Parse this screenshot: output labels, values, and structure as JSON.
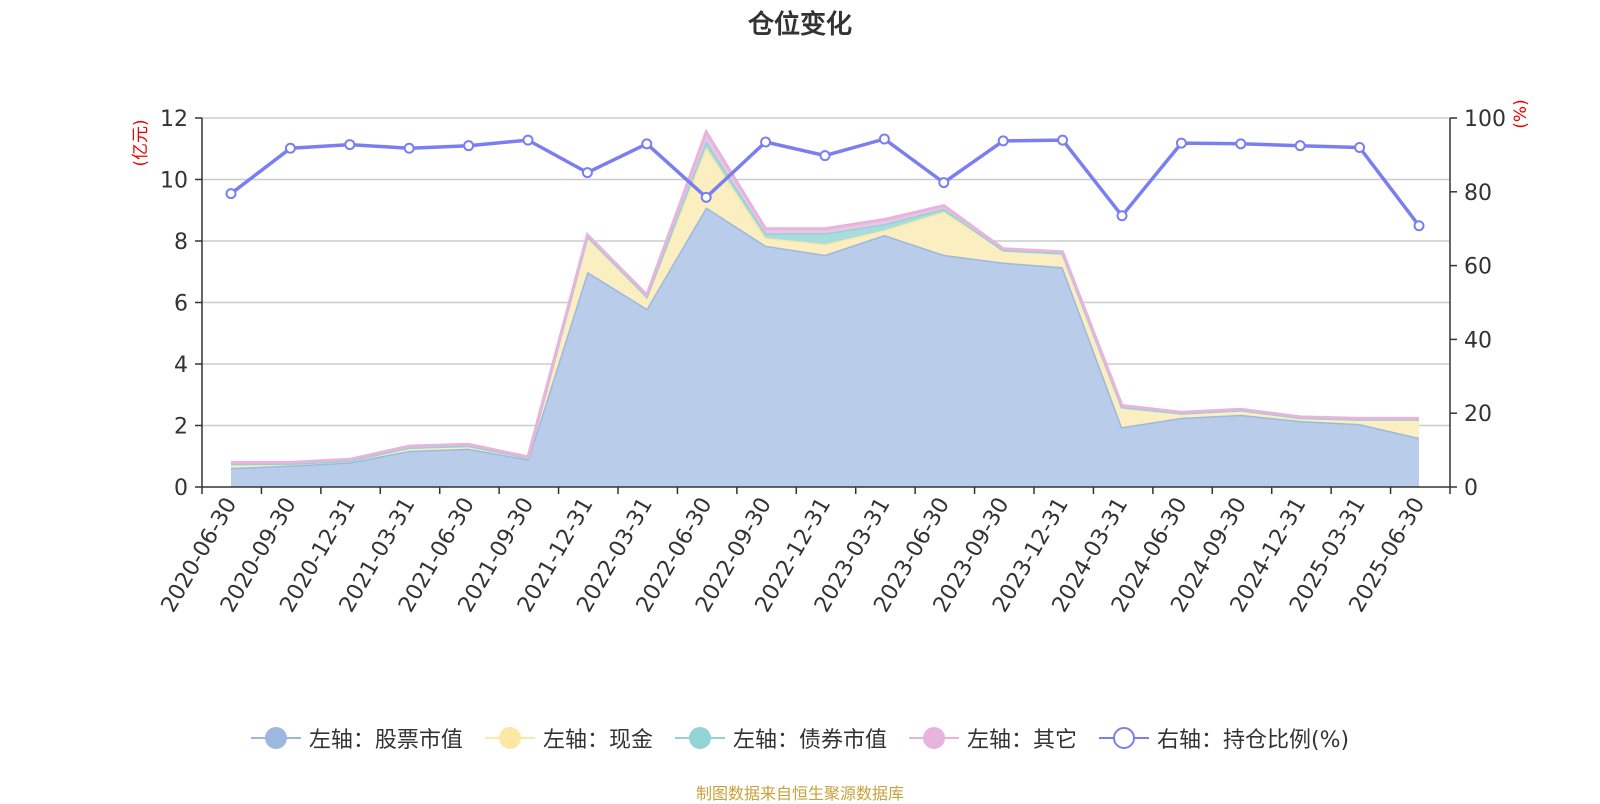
{
  "chart_data": {
    "type": "area",
    "title": "仓位变化",
    "y_left_unit": "(亿元)",
    "y_right_unit": "(%)",
    "y_left_range": [
      0,
      12
    ],
    "y_left_ticks": [
      "0",
      "2",
      "4",
      "6",
      "8",
      "10",
      "12"
    ],
    "y_right_range": [
      0,
      100
    ],
    "y_right_ticks": [
      "0",
      "20",
      "40",
      "60",
      "80",
      "100"
    ],
    "grid": true,
    "stacked": true,
    "legend_position": "bottom",
    "categories": [
      "2020-06-30",
      "2020-09-30",
      "2020-12-31",
      "2021-03-31",
      "2021-06-30",
      "2021-09-30",
      "2021-12-31",
      "2022-03-31",
      "2022-06-30",
      "2022-09-30",
      "2022-12-31",
      "2023-03-31",
      "2023-06-30",
      "2023-09-30",
      "2023-12-31",
      "2024-03-31",
      "2024-06-30",
      "2024-09-30",
      "2024-12-31",
      "2025-03-31",
      "2025-06-30"
    ],
    "series": [
      {
        "name": "左轴：股票市值",
        "axis": "left",
        "kind": "area",
        "color": "#9db8e0",
        "fill": "#b9cdea",
        "values": [
          0.62,
          0.7,
          0.8,
          1.18,
          1.25,
          0.9,
          7.0,
          5.8,
          9.1,
          7.85,
          7.55,
          8.2,
          7.55,
          7.3,
          7.15,
          1.95,
          2.25,
          2.35,
          2.15,
          2.05,
          1.6
        ]
      },
      {
        "name": "左轴：现金",
        "axis": "left",
        "kind": "area",
        "color": "#fae8a4",
        "fill": "#fbeec0",
        "values": [
          0.13,
          0.06,
          0.06,
          0.1,
          0.09,
          0.05,
          1.15,
          0.4,
          1.95,
          0.25,
          0.35,
          0.15,
          1.4,
          0.4,
          0.45,
          0.65,
          0.15,
          0.15,
          0.1,
          0.15,
          0.6
        ]
      },
      {
        "name": "左轴：债券市值",
        "axis": "left",
        "kind": "area",
        "color": "#92d3d3",
        "fill": "#a9dcdc",
        "values": [
          0,
          0,
          0,
          0,
          0,
          0,
          0,
          0,
          0.2,
          0.15,
          0.35,
          0.2,
          0.1,
          0,
          0,
          0,
          0,
          0,
          0,
          0,
          0
        ]
      },
      {
        "name": "左轴：其它",
        "axis": "left",
        "kind": "area",
        "color": "#e6b4dc",
        "fill": "#ebc5e4",
        "values": [
          0.05,
          0.04,
          0.04,
          0.05,
          0.05,
          0.03,
          0.05,
          0.05,
          0.3,
          0.15,
          0.15,
          0.15,
          0.1,
          0.05,
          0.05,
          0.05,
          0.03,
          0.03,
          0.03,
          0.03,
          0.03
        ]
      },
      {
        "name": "右轴：持仓比例(%)",
        "axis": "right",
        "kind": "line",
        "color": "#7b7ef0",
        "values": [
          79.5,
          91.8,
          92.8,
          91.8,
          92.5,
          94.0,
          85.2,
          93.0,
          78.5,
          93.5,
          89.8,
          94.3,
          82.5,
          93.8,
          94.0,
          73.5,
          93.2,
          93.0,
          92.5,
          92.0,
          70.8
        ]
      }
    ]
  },
  "legend": [
    {
      "label": "左轴：股票市值"
    },
    {
      "label": "左轴：现金"
    },
    {
      "label": "左轴：债券市值"
    },
    {
      "label": "左轴：其它"
    },
    {
      "label": "右轴：持仓比例(%)"
    }
  ],
  "source_note": "制图数据来自恒生聚源数据库"
}
